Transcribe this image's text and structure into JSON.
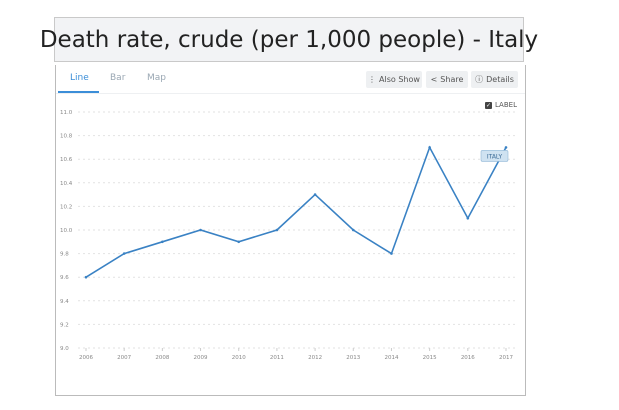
{
  "title": "Death rate, crude (per 1,000 people) - Italy",
  "tabs": [
    {
      "label": "Line",
      "active": true
    },
    {
      "label": "Bar",
      "active": false
    },
    {
      "label": "Map",
      "active": false
    }
  ],
  "buttons": {
    "also_show": "Also Show",
    "share": "Share",
    "details": "Details"
  },
  "label_toggle": {
    "label": "LABEL",
    "checked": true
  },
  "colors": {
    "line": "#3a82c4",
    "accent": "#3b8ed8",
    "series_label_bg": "#cfe2f1"
  },
  "chart_data": {
    "type": "line",
    "title": "Death rate, crude (per 1,000 people) - Italy",
    "xlabel": "",
    "ylabel": "",
    "x": [
      "2006",
      "2007",
      "2008",
      "2009",
      "2010",
      "2011",
      "2012",
      "2013",
      "2014",
      "2015",
      "2016",
      "2017"
    ],
    "series": [
      {
        "name": "ITALY",
        "values": [
          9.6,
          9.8,
          9.9,
          10.0,
          9.9,
          10.0,
          10.3,
          10.0,
          9.8,
          10.7,
          10.1,
          10.7
        ]
      }
    ],
    "ylim": [
      9.0,
      11.0
    ],
    "yticks": [
      "9.0",
      "9.2",
      "9.4",
      "9.6",
      "9.8",
      "10.0",
      "10.2",
      "10.4",
      "10.6",
      "10.8",
      "11.0"
    ],
    "grid": true,
    "series_label": "ITALY"
  }
}
